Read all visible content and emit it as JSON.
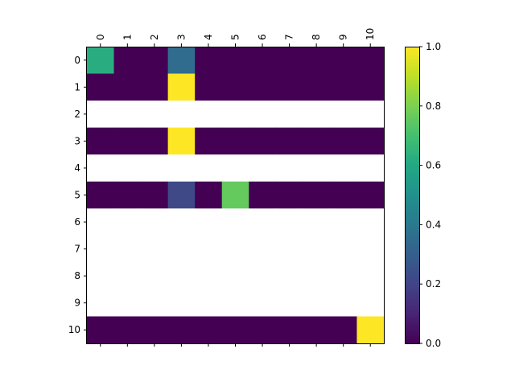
{
  "chart_data": {
    "type": "heatmap",
    "title": "",
    "xlabel": "",
    "ylabel": "",
    "x_labels": [
      "0",
      "1",
      "2",
      "3",
      "4",
      "5",
      "6",
      "7",
      "8",
      "9",
      "10"
    ],
    "y_labels": [
      "0",
      "1",
      "2",
      "3",
      "4",
      "5",
      "6",
      "7",
      "8",
      "9",
      "10"
    ],
    "x_axis_position": "top",
    "rows": [
      [
        0.62,
        0.0,
        0.0,
        0.35,
        0.0,
        0.0,
        0.0,
        0.0,
        0.0,
        0.0,
        0.0
      ],
      [
        0.0,
        0.0,
        0.0,
        1.0,
        0.0,
        0.0,
        0.0,
        0.0,
        0.0,
        0.0,
        0.0
      ],
      [
        null,
        null,
        null,
        null,
        null,
        null,
        null,
        null,
        null,
        null,
        null
      ],
      [
        0.0,
        0.0,
        0.0,
        1.0,
        0.0,
        0.0,
        0.0,
        0.0,
        0.0,
        0.0,
        0.0
      ],
      [
        null,
        null,
        null,
        null,
        null,
        null,
        null,
        null,
        null,
        null,
        null
      ],
      [
        0.0,
        0.0,
        0.0,
        0.22,
        0.0,
        0.76,
        0.0,
        0.0,
        0.0,
        0.0,
        0.0
      ],
      [
        null,
        null,
        null,
        null,
        null,
        null,
        null,
        null,
        null,
        null,
        null
      ],
      [
        null,
        null,
        null,
        null,
        null,
        null,
        null,
        null,
        null,
        null,
        null
      ],
      [
        null,
        null,
        null,
        null,
        null,
        null,
        null,
        null,
        null,
        null,
        null
      ],
      [
        null,
        null,
        null,
        null,
        null,
        null,
        null,
        null,
        null,
        null,
        null
      ],
      [
        0.0,
        0.0,
        0.0,
        0.0,
        0.0,
        0.0,
        0.0,
        0.0,
        0.0,
        0.0,
        1.0
      ]
    ],
    "colormap": "viridis",
    "empty_color": "#ffffff",
    "colorbar": {
      "range": [
        0.0,
        1.0
      ],
      "ticks": [
        0.0,
        0.2,
        0.4,
        0.6,
        0.8,
        1.0
      ],
      "tick_labels": [
        "0.0",
        "0.2",
        "0.4",
        "0.6",
        "0.8",
        "1.0"
      ],
      "placement": "right"
    },
    "grid": false,
    "legend": "none"
  }
}
